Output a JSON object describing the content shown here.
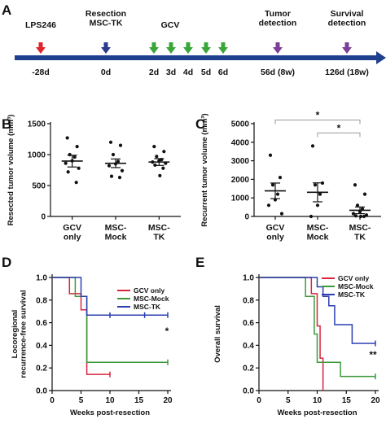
{
  "panels": {
    "a": "A",
    "b": "B",
    "c": "C",
    "d": "D",
    "e": "E"
  },
  "timeline": {
    "events": [
      {
        "label": "LPS246",
        "day": "-28d",
        "marker": "red-arrow",
        "color": "#e0242b"
      },
      {
        "label": "Resection\nMSC-TK",
        "day": "0d",
        "marker": "blue-arrow",
        "color": "#2b3a8c"
      },
      {
        "label": "GCV",
        "day": "",
        "marker": "label",
        "color": "#111111"
      },
      {
        "label": "",
        "day": "2d",
        "marker": "green-arrow",
        "color": "#3aa63a"
      },
      {
        "label": "",
        "day": "3d",
        "marker": "green-arrow",
        "color": "#3aa63a"
      },
      {
        "label": "",
        "day": "4d",
        "marker": "green-arrow",
        "color": "#3aa63a"
      },
      {
        "label": "",
        "day": "5d",
        "marker": "green-arrow",
        "color": "#3aa63a"
      },
      {
        "label": "",
        "day": "6d",
        "marker": "green-arrow",
        "color": "#3aa63a"
      },
      {
        "label": "Tumor\ndetection",
        "day": "56d (8w)",
        "marker": "purple-arrow",
        "color": "#7b3f98"
      },
      {
        "label": "Survival\ndetection",
        "day": "126d (18w)",
        "marker": "purple-arrow",
        "color": "#7b3f98"
      }
    ],
    "bar_color": "#1f3f8f"
  },
  "chart_data": [
    {
      "panel": "B",
      "type": "scatter",
      "ylabel": "Resected tumor volume (mm³)",
      "ylim": [
        0,
        1500
      ],
      "yticks": [
        0,
        500,
        1000,
        1500
      ],
      "categories": [
        "GCV\nonly",
        "MSC-\nMock",
        "MSC-\nTK"
      ],
      "points": [
        [
          1270,
          1130,
          1000,
          960,
          900,
          860,
          780,
          720,
          550
        ],
        [
          1200,
          1150,
          1000,
          890,
          850,
          820,
          740,
          650,
          630
        ],
        [
          1130,
          1050,
          970,
          920,
          900,
          880,
          860,
          830,
          780,
          660
        ]
      ],
      "mean": [
        895,
        860,
        880
      ],
      "sem": [
        95,
        70,
        55
      ]
    },
    {
      "panel": "C",
      "type": "scatter",
      "ylabel": "Recurrent tumor volume (mm³)",
      "ylim": [
        0,
        5000
      ],
      "yticks": [
        0,
        1000,
        2000,
        3000,
        4000,
        5000
      ],
      "categories": [
        "GCV\nonly",
        "MSC-\nMock",
        "MSC-\nTK"
      ],
      "points": [
        [
          3300,
          2100,
          1700,
          1200,
          900,
          600,
          150
        ],
        [
          3800,
          1800,
          1700,
          1200,
          600,
          0
        ],
        [
          1700,
          1200,
          600,
          400,
          250,
          150,
          80,
          30,
          0,
          0
        ]
      ],
      "mean": [
        1380,
        1300,
        330
      ],
      "sem": [
        420,
        510,
        180
      ],
      "significance": [
        {
          "from": 0,
          "to": 2,
          "label": "*",
          "y": 5200
        },
        {
          "from": 1,
          "to": 2,
          "label": "*",
          "y": 4500
        }
      ]
    },
    {
      "panel": "D",
      "type": "line",
      "ylabel": "Locoregional\nrecurrence-free survival",
      "xlabel": "Weeks post-resection",
      "xlim": [
        0,
        20
      ],
      "ylim": [
        0,
        1.0
      ],
      "xticks": [
        0,
        5,
        10,
        15,
        20
      ],
      "yticks": [
        0.0,
        0.2,
        0.4,
        0.6,
        0.8,
        1.0
      ],
      "legend": "top-right",
      "annotation": "*",
      "series": [
        {
          "name": "GCV only",
          "color": "#d7263d",
          "steps": [
            [
              0,
              1.0
            ],
            [
              3,
              0.857
            ],
            [
              5,
              0.714
            ],
            [
              6,
              0.143
            ],
            [
              10,
              0.143
            ]
          ],
          "censor": [
            [
              10,
              0.143
            ]
          ]
        },
        {
          "name": "MSC-Mock",
          "color": "#3c9a3c",
          "steps": [
            [
              0,
              1.0
            ],
            [
              4,
              0.833
            ],
            [
              6,
              0.25
            ],
            [
              20,
              0.25
            ]
          ],
          "censor": [
            [
              20,
              0.25
            ]
          ]
        },
        {
          "name": "MSC-TK",
          "color": "#2b3fb0",
          "steps": [
            [
              0,
              1.0
            ],
            [
              5,
              0.833
            ],
            [
              6,
              0.667
            ],
            [
              20,
              0.667
            ]
          ],
          "censor": [
            [
              10,
              0.667
            ],
            [
              16,
              0.667
            ],
            [
              20,
              0.667
            ]
          ]
        }
      ]
    },
    {
      "panel": "E",
      "type": "line",
      "ylabel": "Overall survival",
      "xlabel": "Weeks post-resection",
      "xlim": [
        0,
        20
      ],
      "ylim": [
        0,
        1.0
      ],
      "xticks": [
        0,
        5,
        10,
        15,
        20
      ],
      "yticks": [
        0.0,
        0.2,
        0.4,
        0.6,
        0.8,
        1.0
      ],
      "legend": "top-right",
      "annotation": "**",
      "series": [
        {
          "name": "GCV only",
          "color": "#d7263d",
          "steps": [
            [
              0,
              1.0
            ],
            [
              9,
              0.857
            ],
            [
              10,
              0.571
            ],
            [
              10.5,
              0.286
            ],
            [
              11,
              0.0
            ]
          ],
          "censor": []
        },
        {
          "name": "MSC-Mock",
          "color": "#3c9a3c",
          "steps": [
            [
              0,
              1.0
            ],
            [
              8,
              0.833
            ],
            [
              9.5,
              0.5
            ],
            [
              10,
              0.25
            ],
            [
              14,
              0.125
            ],
            [
              20,
              0.125
            ]
          ],
          "censor": [
            [
              20,
              0.125
            ]
          ]
        },
        {
          "name": "MSC-TK",
          "color": "#2b3fb0",
          "steps": [
            [
              0,
              1.0
            ],
            [
              10,
              0.917
            ],
            [
              11,
              0.833
            ],
            [
              12,
              0.75
            ],
            [
              13,
              0.583
            ],
            [
              16,
              0.417
            ],
            [
              20,
              0.417
            ]
          ],
          "censor": [
            [
              20,
              0.417
            ]
          ]
        }
      ]
    }
  ]
}
